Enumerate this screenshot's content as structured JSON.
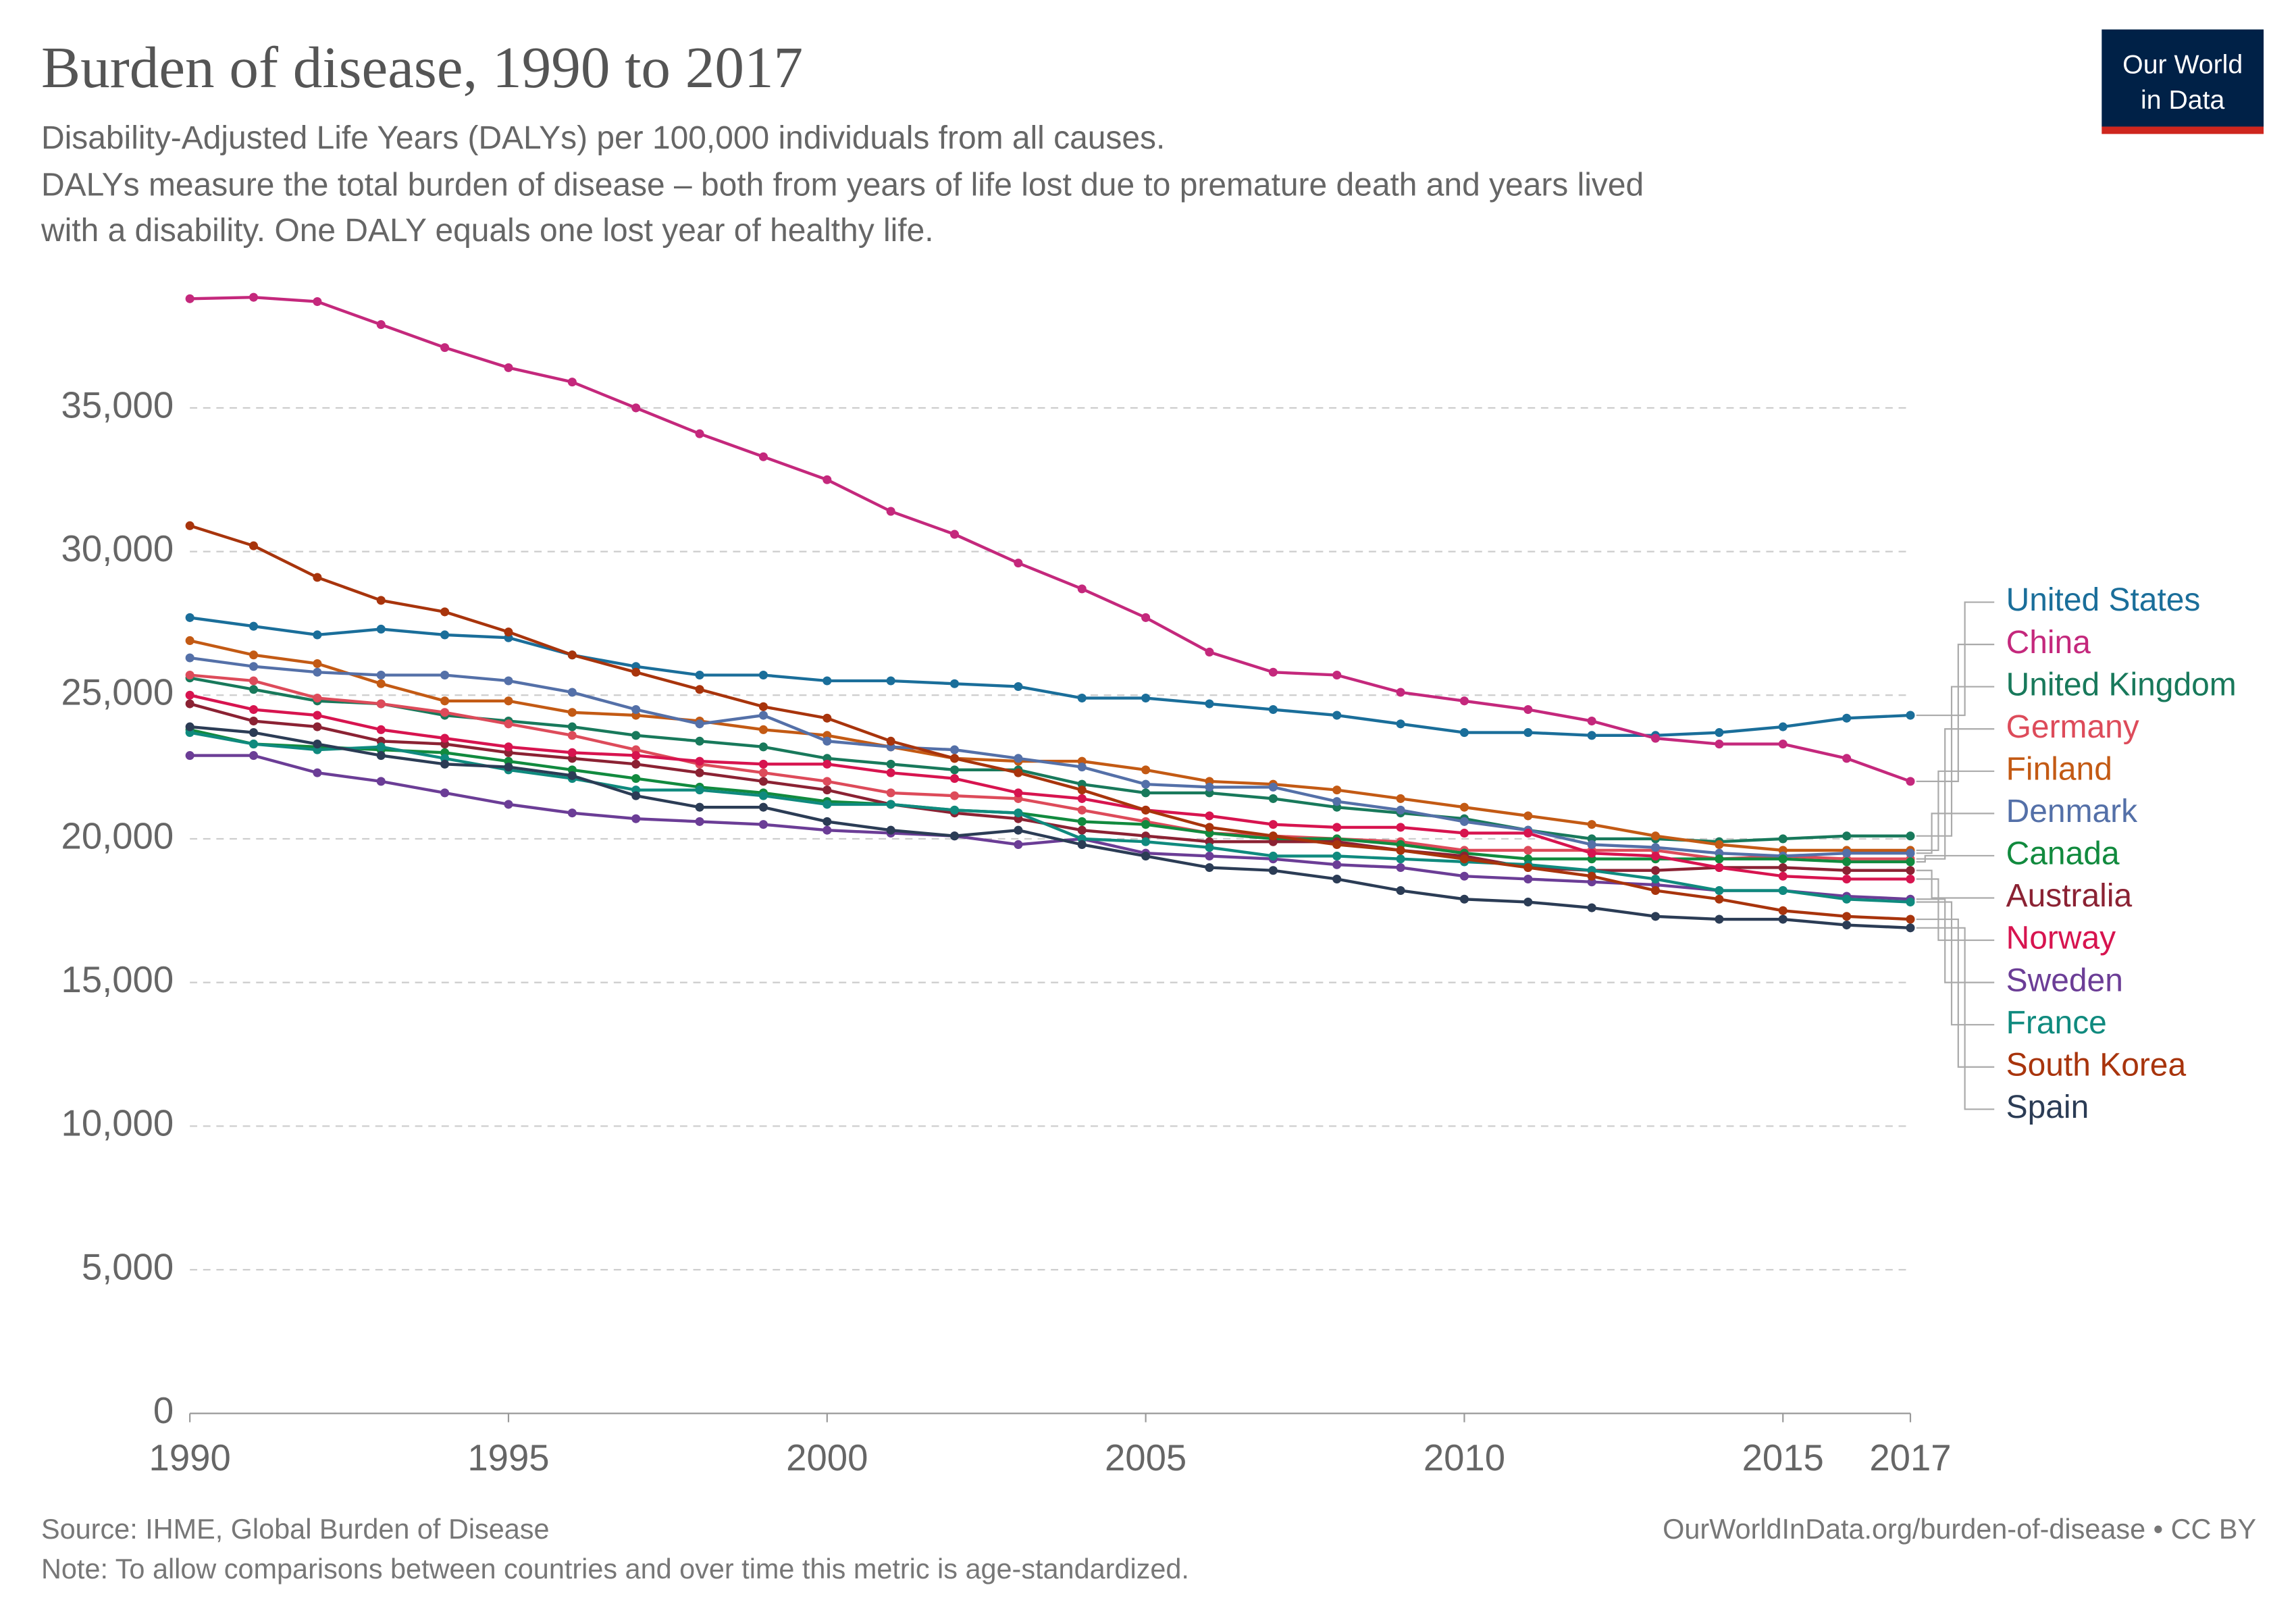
{
  "chart_data": {
    "type": "line",
    "title": "Burden of disease, 1990 to 2017",
    "subtitle": [
      "Disability-Adjusted Life Years (DALYs) per 100,000 individuals from all causes.",
      "DALYs measure the total burden of disease – both from years of life lost due to premature death and years lived",
      "with a disability. One DALY equals one lost year of healthy life."
    ],
    "source": "Source: IHME, Global Burden of Disease",
    "note": "Note: To allow comparisons between countries and over time this metric is age-standardized.",
    "url": "OurWorldInData.org/burden-of-disease • CC BY",
    "logo": [
      "Our World",
      "in Data"
    ],
    "x": [
      1990,
      1991,
      1992,
      1993,
      1994,
      1995,
      1996,
      1997,
      1998,
      1999,
      2000,
      2001,
      2002,
      2003,
      2004,
      2005,
      2006,
      2007,
      2008,
      2009,
      2010,
      2011,
      2012,
      2013,
      2014,
      2015,
      2016,
      2017
    ],
    "xlim": [
      1990,
      2017
    ],
    "xticks": [
      1990,
      1995,
      2000,
      2005,
      2010,
      2015,
      2017
    ],
    "ylim": [
      0,
      39000
    ],
    "yticks": [
      0,
      {
        "value": 5000,
        "label": "5,000"
      },
      {
        "value": 10000,
        "label": "10,000"
      },
      {
        "value": 15000,
        "label": "15,000"
      },
      {
        "value": 20000,
        "label": "20,000"
      },
      {
        "value": 25000,
        "label": "25,000"
      },
      {
        "value": 30000,
        "label": "30,000"
      },
      {
        "value": 35000,
        "label": "35,000"
      }
    ],
    "grid": true,
    "series": [
      {
        "name": "United States",
        "color": "#1a6e9a",
        "values": [
          27700,
          27400,
          27100,
          27300,
          27100,
          27000,
          26400,
          26000,
          25700,
          25700,
          25500,
          25500,
          25400,
          25300,
          24900,
          24900,
          24700,
          24500,
          24300,
          24000,
          23700,
          23700,
          23600,
          23600,
          23700,
          23900,
          24200,
          24300
        ]
      },
      {
        "name": "China",
        "color": "#c4287c",
        "values": [
          38800,
          38850,
          38700,
          37900,
          37100,
          36400,
          35900,
          35000,
          34100,
          33300,
          32500,
          31400,
          30600,
          29600,
          28700,
          27700,
          26500,
          25800,
          25700,
          25100,
          24800,
          24500,
          24100,
          23500,
          23300,
          23300,
          22800,
          22000
        ]
      },
      {
        "name": "United Kingdom",
        "color": "#18795b",
        "values": [
          25600,
          25200,
          24800,
          24700,
          24300,
          24100,
          23900,
          23600,
          23400,
          23200,
          22800,
          22600,
          22400,
          22400,
          21900,
          21600,
          21600,
          21400,
          21100,
          20900,
          20700,
          20300,
          20000,
          20000,
          19900,
          20000,
          20100,
          20100
        ]
      },
      {
        "name": "Germany",
        "color": "#dd4b5a",
        "values": [
          25700,
          25500,
          24900,
          24700,
          24400,
          24000,
          23600,
          23100,
          22600,
          22300,
          22000,
          21600,
          21500,
          21400,
          21000,
          20600,
          20200,
          20100,
          20000,
          19900,
          19600,
          19600,
          19600,
          19600,
          19300,
          19400,
          19300,
          19300
        ]
      },
      {
        "name": "Finland",
        "color": "#c35a14",
        "values": [
          26900,
          26400,
          26100,
          25400,
          24800,
          24800,
          24400,
          24300,
          24100,
          23800,
          23600,
          23200,
          22800,
          22700,
          22700,
          22400,
          22000,
          21900,
          21700,
          21400,
          21100,
          20800,
          20500,
          20100,
          19800,
          19600,
          19600,
          19600
        ]
      },
      {
        "name": "Denmark",
        "color": "#5470a8",
        "values": [
          26300,
          26000,
          25800,
          25700,
          25700,
          25500,
          25100,
          24500,
          24000,
          24300,
          23400,
          23200,
          23100,
          22800,
          22500,
          21900,
          21800,
          21800,
          21300,
          21000,
          20600,
          20300,
          19800,
          19700,
          19500,
          19400,
          19500,
          19500
        ]
      },
      {
        "name": "Canada",
        "color": "#118a3e",
        "values": [
          23800,
          23300,
          23200,
          23100,
          23000,
          22700,
          22400,
          22100,
          21800,
          21600,
          21300,
          21200,
          21000,
          20900,
          20600,
          20500,
          20200,
          20000,
          20000,
          19800,
          19500,
          19300,
          19300,
          19300,
          19300,
          19300,
          19200,
          19200
        ]
      },
      {
        "name": "Australia",
        "color": "#8b2233",
        "values": [
          24700,
          24100,
          23900,
          23400,
          23300,
          23000,
          22800,
          22600,
          22300,
          22000,
          21700,
          21200,
          20900,
          20700,
          20300,
          20100,
          19900,
          19900,
          19900,
          19600,
          19400,
          19000,
          18900,
          18900,
          19000,
          19000,
          18900,
          18900
        ]
      },
      {
        "name": "Norway",
        "color": "#d7144f",
        "values": [
          25000,
          24500,
          24300,
          23800,
          23500,
          23200,
          23000,
          22900,
          22700,
          22600,
          22600,
          22300,
          22100,
          21600,
          21400,
          21000,
          20800,
          20500,
          20400,
          20400,
          20200,
          20200,
          19500,
          19400,
          19000,
          18700,
          18600,
          18600
        ]
      },
      {
        "name": "Sweden",
        "color": "#6b3d96",
        "values": [
          22900,
          22900,
          22300,
          22000,
          21600,
          21200,
          20900,
          20700,
          20600,
          20500,
          20300,
          20200,
          20100,
          19800,
          20000,
          19500,
          19400,
          19300,
          19100,
          19000,
          18700,
          18600,
          18500,
          18400,
          18200,
          18200,
          18000,
          17900
        ]
      },
      {
        "name": "France",
        "color": "#0f8a7e",
        "values": [
          23700,
          23300,
          23100,
          23200,
          22800,
          22400,
          22100,
          21700,
          21700,
          21500,
          21200,
          21200,
          21000,
          20900,
          20000,
          19900,
          19700,
          19400,
          19400,
          19300,
          19200,
          19100,
          18900,
          18600,
          18200,
          18200,
          17900,
          17800
        ]
      },
      {
        "name": "South Korea",
        "color": "#a8340c",
        "values": [
          30900,
          30200,
          29100,
          28300,
          27900,
          27200,
          26400,
          25800,
          25200,
          24600,
          24200,
          23400,
          22800,
          22300,
          21700,
          21000,
          20400,
          20100,
          19800,
          19600,
          19300,
          19000,
          18700,
          18200,
          17900,
          17500,
          17300,
          17200
        ]
      },
      {
        "name": "Spain",
        "color": "#2b3c55",
        "values": [
          23900,
          23700,
          23300,
          22900,
          22600,
          22500,
          22200,
          21500,
          21100,
          21100,
          20600,
          20300,
          20100,
          20300,
          19800,
          19400,
          19000,
          18900,
          18600,
          18200,
          17900,
          17800,
          17600,
          17300,
          17200,
          17200,
          17000,
          16900
        ]
      }
    ]
  }
}
